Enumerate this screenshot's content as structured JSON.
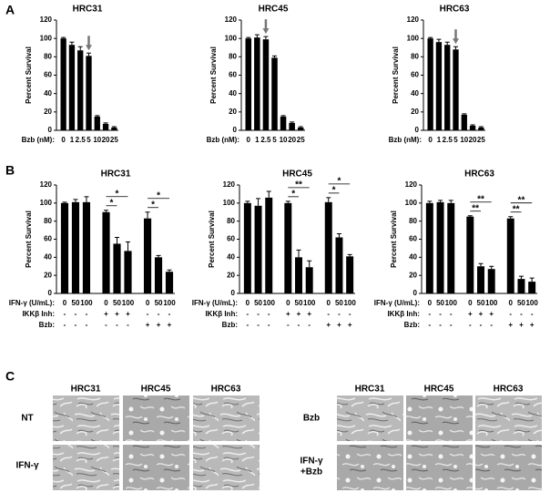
{
  "panel_labels": [
    "A",
    "B",
    "C"
  ],
  "chart_data": [
    {
      "type": "bar",
      "title": "HRC31",
      "ylabel": "Percent Survival",
      "xlabel": "Bzb (nM):",
      "color": "#000000",
      "categories": [
        "0",
        "1",
        "2.5",
        "5",
        "10",
        "20",
        "25"
      ],
      "values": [
        100,
        93,
        87,
        81,
        15,
        7,
        3
      ],
      "errors": [
        1,
        3,
        4,
        3,
        1,
        1,
        1
      ],
      "arrow_category": "5",
      "ylim": [
        0,
        120
      ],
      "yticks": [
        0,
        20,
        40,
        60,
        80,
        100,
        120
      ]
    },
    {
      "type": "bar",
      "title": "HRC45",
      "ylabel": "Percent Survival",
      "xlabel": "Bzb (nM):",
      "color": "#000000",
      "categories": [
        "0",
        "1",
        "2.5",
        "5",
        "10",
        "20",
        "25"
      ],
      "values": [
        100,
        101,
        99,
        79,
        15,
        8,
        3
      ],
      "errors": [
        1,
        3,
        3,
        2,
        1,
        1,
        1
      ],
      "arrow_category": "2.5",
      "ylim": [
        0,
        120
      ],
      "yticks": [
        0,
        20,
        40,
        60,
        80,
        100,
        120
      ]
    },
    {
      "type": "bar",
      "title": "HRC63",
      "ylabel": "Percent Survival",
      "xlabel": "Bzb (nM):",
      "color": "#000000",
      "categories": [
        "0",
        "1",
        "2.5",
        "5",
        "10",
        "20",
        "25"
      ],
      "values": [
        100,
        96,
        93,
        88,
        17,
        5,
        3
      ],
      "errors": [
        1,
        3,
        3,
        3,
        1,
        1,
        1
      ],
      "arrow_category": "5",
      "ylim": [
        0,
        120
      ],
      "yticks": [
        0,
        20,
        40,
        60,
        80,
        100,
        120
      ]
    },
    {
      "type": "bar",
      "title": "HRC31",
      "ylabel": "Percent Survival",
      "xlabel": "IFN-γ (U/mL):",
      "color": "#000000",
      "categories": [
        "0",
        "50",
        "100",
        "0",
        "50",
        "100",
        "0",
        "50",
        "100"
      ],
      "values": [
        100,
        101,
        101,
        90,
        55,
        47,
        83,
        40,
        24
      ],
      "errors": [
        1,
        3,
        6,
        2,
        7,
        10,
        7,
        2,
        2
      ],
      "extra_rows": [
        {
          "label": "IKKβ Inh:",
          "values": [
            "-",
            "-",
            "-",
            "+",
            "+",
            "+",
            "-",
            "-",
            "-"
          ]
        },
        {
          "label": "Bzb:",
          "values": [
            "-",
            "-",
            "-",
            "-",
            "-",
            "-",
            "+",
            "+",
            "+"
          ]
        }
      ],
      "significance": [
        "*",
        "*",
        "*",
        "*"
      ],
      "ylim": [
        0,
        120
      ],
      "yticks": [
        0,
        20,
        40,
        60,
        80,
        100,
        120
      ]
    },
    {
      "type": "bar",
      "title": "HRC45",
      "ylabel": "Percent Survival",
      "xlabel": "IFN-γ (U/mL):",
      "color": "#000000",
      "categories": [
        "0",
        "50",
        "100",
        "0",
        "50",
        "100",
        "0",
        "50",
        "100"
      ],
      "values": [
        100,
        97,
        106,
        100,
        40,
        29,
        101,
        62,
        41
      ],
      "errors": [
        2,
        8,
        7,
        2,
        8,
        7,
        5,
        4,
        2
      ],
      "extra_rows": [
        {
          "label": "IKKβ Inh:",
          "values": [
            "-",
            "-",
            "-",
            "+",
            "+",
            "+",
            "-",
            "-",
            "-"
          ]
        },
        {
          "label": "Bzb:",
          "values": [
            "-",
            "-",
            "-",
            "-",
            "-",
            "-",
            "+",
            "+",
            "+"
          ]
        }
      ],
      "significance": [
        "**",
        "*",
        "*",
        "*"
      ],
      "ylim": [
        0,
        120
      ],
      "yticks": [
        0,
        20,
        40,
        60,
        80,
        100,
        120
      ]
    },
    {
      "type": "bar",
      "title": "HRC63",
      "ylabel": "Percent Survival",
      "xlabel": "IFN-γ (U/mL):",
      "color": "#000000",
      "categories": [
        "0",
        "50",
        "100",
        "0",
        "50",
        "100",
        "0",
        "50",
        "100"
      ],
      "values": [
        100,
        101,
        100,
        85,
        30,
        27,
        83,
        16,
        13
      ],
      "errors": [
        2,
        2,
        3,
        1,
        3,
        3,
        2,
        3,
        4
      ],
      "extra_rows": [
        {
          "label": "IKKβ Inh:",
          "values": [
            "-",
            "-",
            "-",
            "+",
            "+",
            "+",
            "-",
            "-",
            "-"
          ]
        },
        {
          "label": "Bzb:",
          "values": [
            "-",
            "-",
            "-",
            "-",
            "-",
            "-",
            "+",
            "+",
            "+"
          ]
        }
      ],
      "significance": [
        "**",
        "**",
        "**",
        "**"
      ],
      "ylim": [
        0,
        120
      ],
      "yticks": [
        0,
        20,
        40,
        60,
        80,
        100,
        120
      ]
    }
  ],
  "micrographs": {
    "left": {
      "columns": [
        "HRC31",
        "HRC45",
        "HRC63"
      ],
      "rows": [
        "NT",
        "IFN-γ"
      ]
    },
    "right": {
      "columns": [
        "HRC31",
        "HRC45",
        "HRC63"
      ],
      "rows": [
        "Bzb",
        [
          "IFN-γ",
          "+Bzb"
        ]
      ]
    }
  }
}
